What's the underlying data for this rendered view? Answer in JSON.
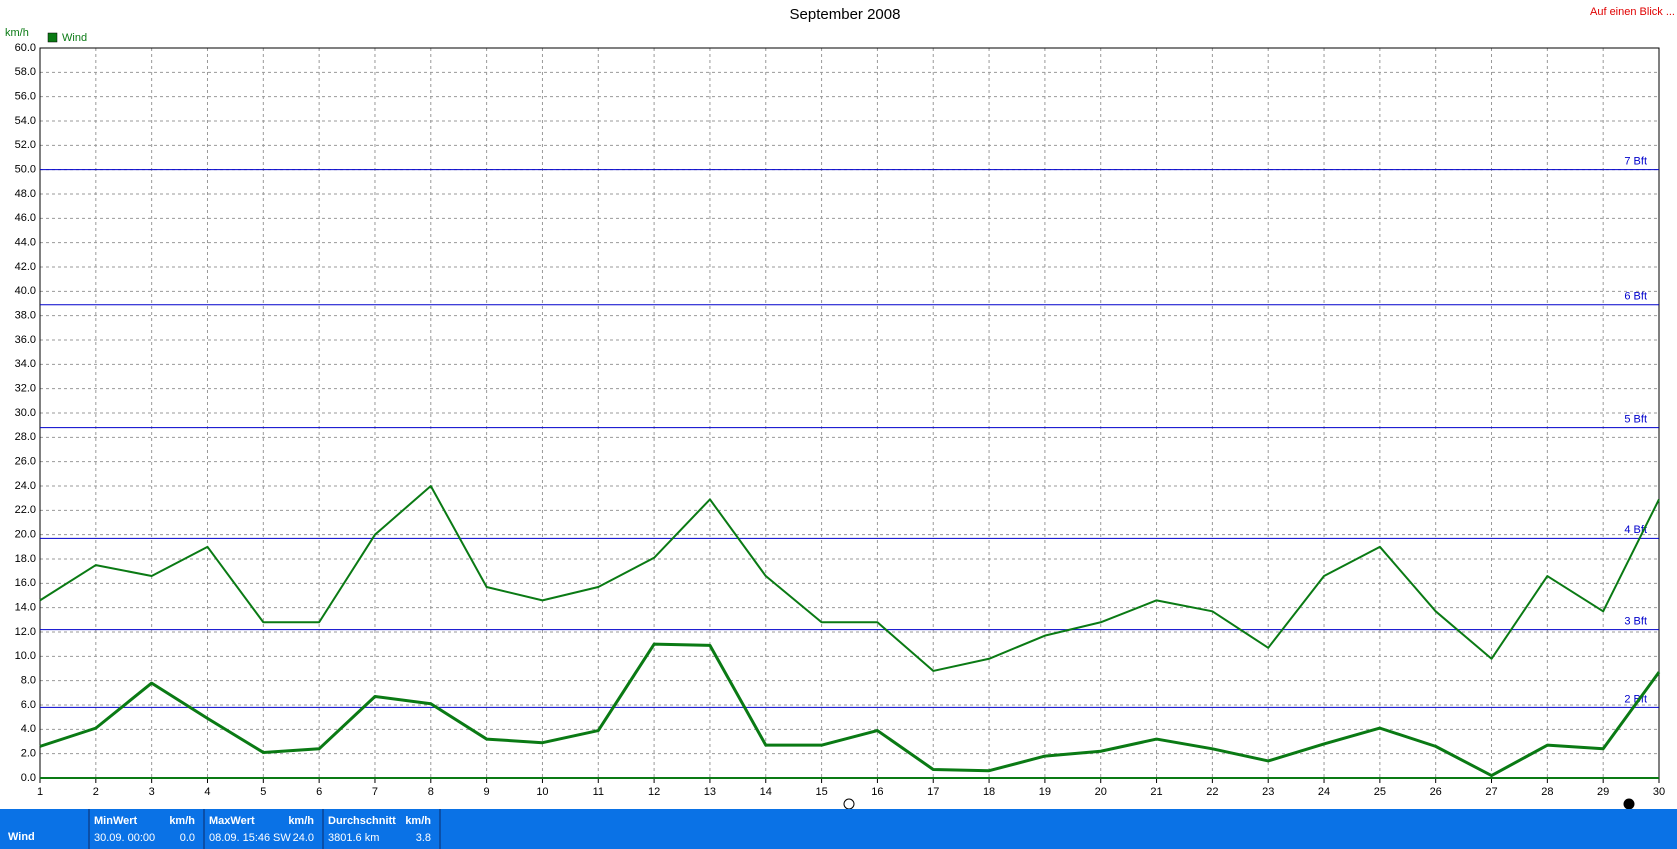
{
  "chart_data": {
    "type": "line",
    "title": "September 2008",
    "y_label": "km/h",
    "link": "Auf einen Blick ...",
    "x": [
      1,
      2,
      3,
      4,
      5,
      6,
      7,
      8,
      9,
      10,
      11,
      12,
      13,
      14,
      15,
      16,
      17,
      18,
      19,
      20,
      21,
      22,
      23,
      24,
      25,
      26,
      27,
      28,
      29,
      30
    ],
    "xlim": [
      1,
      30
    ],
    "xticks": [
      1,
      2,
      3,
      4,
      5,
      6,
      7,
      8,
      9,
      10,
      11,
      12,
      13,
      14,
      15,
      16,
      17,
      18,
      19,
      20,
      21,
      22,
      23,
      24,
      25,
      26,
      27,
      28,
      29,
      30
    ],
    "ylim": [
      0,
      60
    ],
    "yticks": [
      {
        "value": 0,
        "label": "0.0"
      },
      {
        "value": 2,
        "label": "2.0"
      },
      {
        "value": 4,
        "label": "4.0"
      },
      {
        "value": 6,
        "label": "6.0"
      },
      {
        "value": 8,
        "label": "8.0"
      },
      {
        "value": 10,
        "label": "10.0"
      },
      {
        "value": 12,
        "label": "12.0"
      },
      {
        "value": 14,
        "label": "14.0"
      },
      {
        "value": 16,
        "label": "16.0"
      },
      {
        "value": 18,
        "label": "18.0"
      },
      {
        "value": 20,
        "label": "20.0"
      },
      {
        "value": 22,
        "label": "22.0"
      },
      {
        "value": 24,
        "label": "24.0"
      },
      {
        "value": 26,
        "label": "26.0"
      },
      {
        "value": 28,
        "label": "28.0"
      },
      {
        "value": 30,
        "label": "30.0"
      },
      {
        "value": 32,
        "label": "32.0"
      },
      {
        "value": 34,
        "label": "34.0"
      },
      {
        "value": 36,
        "label": "36.0"
      },
      {
        "value": 38,
        "label": "38.0"
      },
      {
        "value": 40,
        "label": "40.0"
      },
      {
        "value": 42,
        "label": "42.0"
      },
      {
        "value": 44,
        "label": "44.0"
      },
      {
        "value": 46,
        "label": "46.0"
      },
      {
        "value": 48,
        "label": "48.0"
      },
      {
        "value": 50,
        "label": "50.0"
      },
      {
        "value": 52,
        "label": "52.0"
      },
      {
        "value": 54,
        "label": "54.0"
      },
      {
        "value": 56,
        "label": "56.0"
      },
      {
        "value": 58,
        "label": "58.0"
      },
      {
        "value": 60,
        "label": "60.0"
      }
    ],
    "grid": true,
    "legend": "top-left",
    "series": [
      {
        "name": "Wind",
        "color": "#0a7a14",
        "width": 3,
        "values": [
          2.6,
          4.1,
          7.8,
          4.9,
          2.1,
          2.4,
          6.7,
          6.1,
          3.2,
          2.9,
          3.9,
          11.0,
          10.9,
          2.7,
          2.7,
          3.9,
          0.7,
          0.6,
          1.8,
          2.2,
          3.2,
          2.4,
          1.4,
          2.8,
          4.1,
          2.6,
          0.2,
          2.7,
          2.4,
          8.7
        ]
      },
      {
        "color": "#0a7a14",
        "width": 2,
        "values": [
          14.6,
          17.5,
          16.6,
          19.0,
          12.8,
          12.8,
          20.0,
          24.0,
          15.7,
          14.6,
          15.7,
          18.1,
          22.9,
          16.6,
          12.8,
          12.8,
          8.8,
          9.8,
          11.7,
          12.8,
          14.6,
          13.7,
          10.7,
          16.6,
          19.0,
          13.7,
          9.8,
          16.6,
          13.7,
          22.9
        ]
      }
    ],
    "reference_lines": {
      "color": "#0000cc",
      "lines": [
        {
          "label": "2 Bft",
          "value": 5.8
        },
        {
          "label": "3 Bft",
          "value": 12.2
        },
        {
          "label": "4 Bft",
          "value": 19.7
        },
        {
          "label": "5 Bft",
          "value": 28.8
        },
        {
          "label": "6 Bft",
          "value": 38.9
        },
        {
          "label": "7 Bft",
          "value": 50.0
        }
      ]
    }
  },
  "summary": {
    "label": "Wind",
    "min": {
      "title": "MinWert",
      "unit": "km/h",
      "time": "30.09.  00:00",
      "value": "0.0"
    },
    "max": {
      "title": "MaxWert",
      "unit": "km/h",
      "time": "08.09.  15:46",
      "dir": "SW",
      "value": "24.0"
    },
    "avg": {
      "title": "Durchschnitt",
      "unit": "km/h",
      "distance": "3801.6 km",
      "value": "3.8"
    }
  }
}
